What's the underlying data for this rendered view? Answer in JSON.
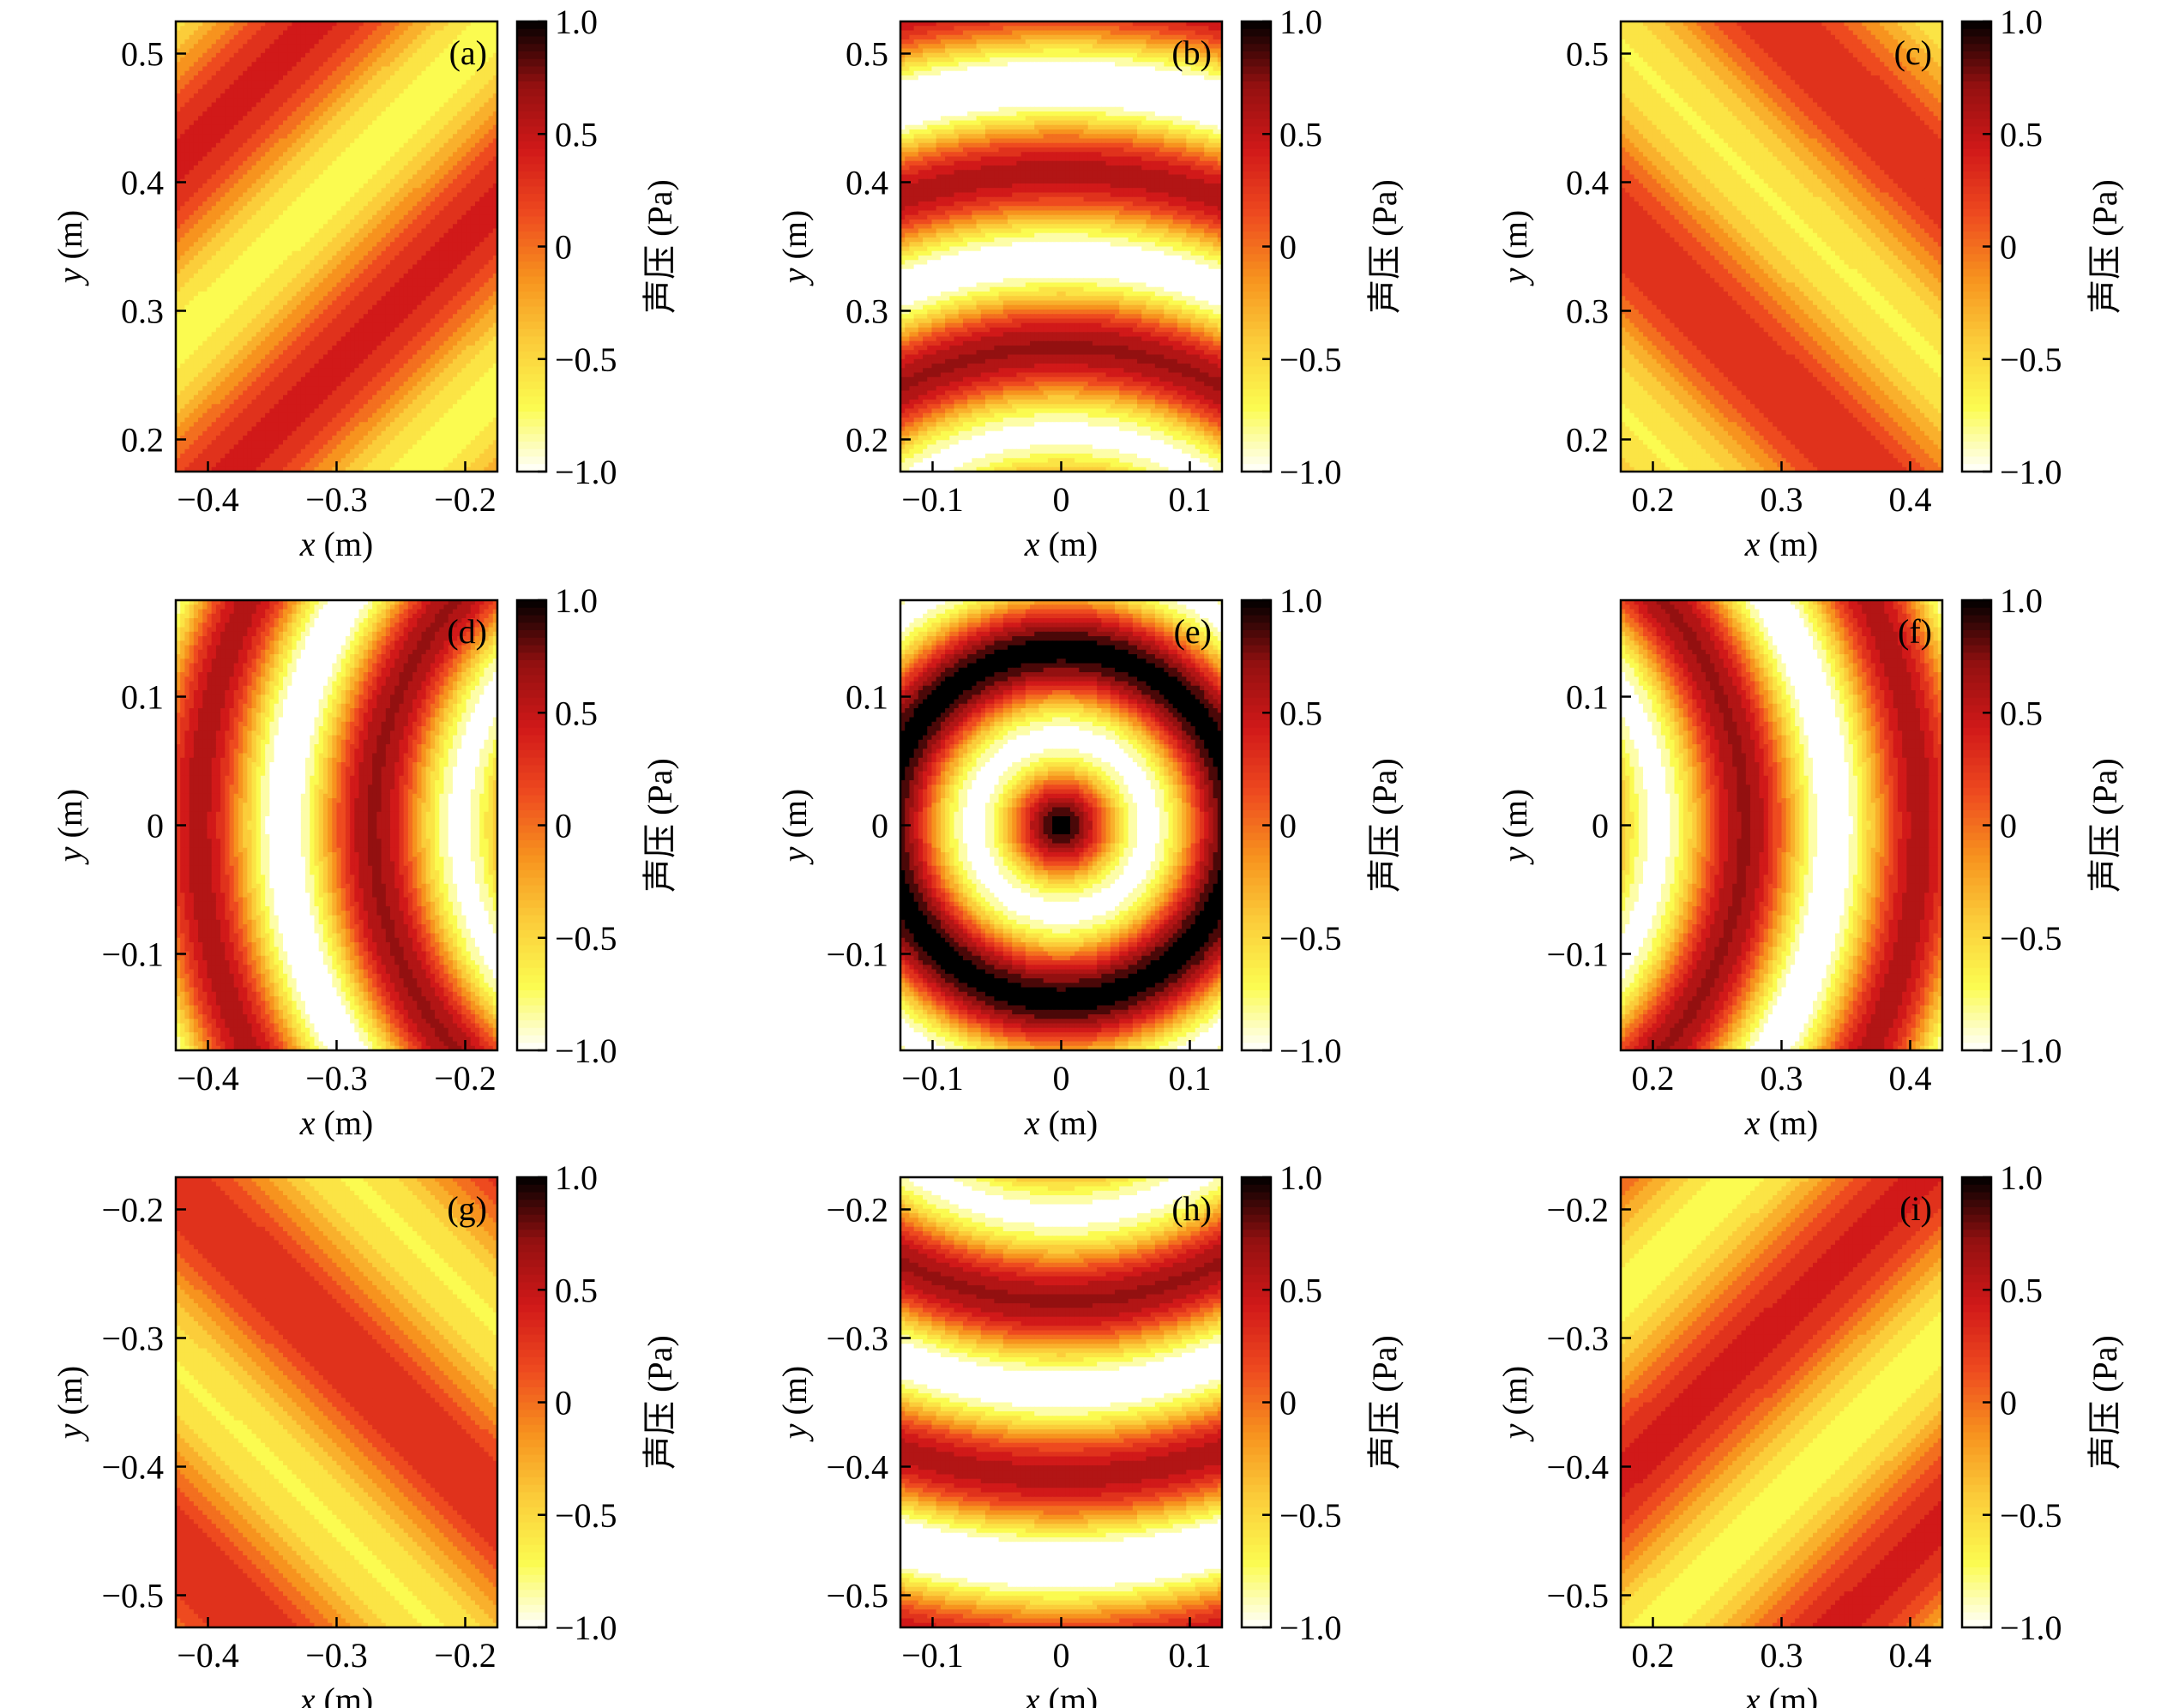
{
  "figure": {
    "colorbar_ticks": [
      "1.0",
      "0.5",
      "0",
      "−0.5",
      "−1.0"
    ],
    "colorbar_label": "声压 (Pa)",
    "colormap": [
      "#ffffff",
      "#fbfb50",
      "#fbcd3a",
      "#f7931e",
      "#ee4a1f",
      "#d11919",
      "#931010",
      "#000000"
    ]
  },
  "chart_data": [
    {
      "type": "heatmap",
      "panel_label": "(a)",
      "xlabel_var": "x",
      "xlabel_unit": " (m)",
      "ylabel_var": "y",
      "ylabel_unit": " (m)",
      "x_range": [
        -0.425,
        -0.175
      ],
      "y_range": [
        0.175,
        0.525
      ],
      "x_ticks": [
        -0.4,
        -0.3,
        -0.2
      ],
      "x_tick_labels": [
        "−0.4",
        "−0.3",
        "−0.2"
      ],
      "y_ticks": [
        0.2,
        0.3,
        0.4,
        0.5
      ],
      "y_tick_labels": [
        "0.2",
        "0.3",
        "0.4",
        "0.5"
      ],
      "colorbar_range": [
        -1.0,
        1.0
      ],
      "field": "plane-wave-diagonal",
      "field_params": {
        "dir": [
          -1,
          1
        ],
        "k": 15.7,
        "phase": 0.2,
        "amp": 0.55
      }
    },
    {
      "type": "heatmap",
      "panel_label": "(b)",
      "xlabel_var": "x",
      "xlabel_unit": " (m)",
      "ylabel_var": "y",
      "ylabel_unit": " (m)",
      "x_range": [
        -0.125,
        0.125
      ],
      "y_range": [
        0.175,
        0.525
      ],
      "x_ticks": [
        -0.1,
        0,
        0.1
      ],
      "x_tick_labels": [
        "−0.1",
        "0",
        "0.1"
      ],
      "y_ticks": [
        0.2,
        0.3,
        0.4,
        0.5
      ],
      "y_tick_labels": [
        "0.2",
        "0.3",
        "0.4",
        "0.5"
      ],
      "colorbar_range": [
        -1.0,
        1.0
      ],
      "field": "radial",
      "field_params": {
        "k": 21.0,
        "phase": 0.0,
        "amp": 0.85,
        "decay": 0.35
      }
    },
    {
      "type": "heatmap",
      "panel_label": "(c)",
      "xlabel_var": "x",
      "xlabel_unit": " (m)",
      "ylabel_var": "y",
      "ylabel_unit": " (m)",
      "x_range": [
        0.175,
        0.425
      ],
      "y_range": [
        0.175,
        0.525
      ],
      "x_ticks": [
        0.2,
        0.3,
        0.4
      ],
      "x_tick_labels": [
        "0.2",
        "0.3",
        "0.4"
      ],
      "y_ticks": [
        0.2,
        0.3,
        0.4,
        0.5
      ],
      "y_tick_labels": [
        "0.2",
        "0.3",
        "0.4",
        "0.5"
      ],
      "colorbar_range": [
        -1.0,
        1.0
      ],
      "field": "plane-wave-diagonal",
      "field_params": {
        "dir": [
          1,
          1
        ],
        "k": 15.7,
        "phase": 0.6,
        "amp": 0.5
      }
    },
    {
      "type": "heatmap",
      "panel_label": "(d)",
      "xlabel_var": "x",
      "xlabel_unit": " (m)",
      "ylabel_var": "y",
      "ylabel_unit": " (m)",
      "x_range": [
        -0.425,
        -0.175
      ],
      "y_range": [
        -0.175,
        0.175
      ],
      "x_ticks": [
        -0.4,
        -0.3,
        -0.2
      ],
      "x_tick_labels": [
        "−0.4",
        "−0.3",
        "−0.2"
      ],
      "y_ticks": [
        -0.1,
        0,
        0.1
      ],
      "y_tick_labels": [
        "−0.1",
        "0",
        "0.1"
      ],
      "colorbar_range": [
        -1.0,
        1.0
      ],
      "field": "radial",
      "field_params": {
        "k": 21.0,
        "phase": 0.0,
        "amp": 0.85,
        "decay": 0.35
      }
    },
    {
      "type": "heatmap",
      "panel_label": "(e)",
      "xlabel_var": "x",
      "xlabel_unit": " (m)",
      "ylabel_var": "y",
      "ylabel_unit": " (m)",
      "x_range": [
        -0.125,
        0.125
      ],
      "y_range": [
        -0.175,
        0.175
      ],
      "x_ticks": [
        -0.1,
        0,
        0.1
      ],
      "x_tick_labels": [
        "−0.1",
        "0",
        "0.1"
      ],
      "y_ticks": [
        -0.1,
        0,
        0.1
      ],
      "y_tick_labels": [
        "−0.1",
        "0",
        "0.1"
      ],
      "colorbar_range": [
        -1.0,
        1.0
      ],
      "field": "radial",
      "field_params": {
        "k": 21.0,
        "phase": 0.0,
        "amp": 1.0,
        "decay": 0.0
      }
    },
    {
      "type": "heatmap",
      "panel_label": "(f)",
      "xlabel_var": "x",
      "xlabel_unit": " (m)",
      "ylabel_var": "y",
      "ylabel_unit": " (m)",
      "x_range": [
        0.175,
        0.425
      ],
      "y_range": [
        -0.175,
        0.175
      ],
      "x_ticks": [
        0.2,
        0.3,
        0.4
      ],
      "x_tick_labels": [
        "0.2",
        "0.3",
        "0.4"
      ],
      "y_ticks": [
        -0.1,
        0,
        0.1
      ],
      "y_tick_labels": [
        "−0.1",
        "0",
        "0.1"
      ],
      "colorbar_range": [
        -1.0,
        1.0
      ],
      "field": "radial",
      "field_params": {
        "k": 21.0,
        "phase": 0.0,
        "amp": 0.85,
        "decay": 0.35
      }
    },
    {
      "type": "heatmap",
      "panel_label": "(g)",
      "xlabel_var": "x",
      "xlabel_unit": " (m)",
      "ylabel_var": "y",
      "ylabel_unit": " (m)",
      "x_range": [
        -0.425,
        -0.175
      ],
      "y_range": [
        -0.525,
        -0.175
      ],
      "x_ticks": [
        -0.4,
        -0.3,
        -0.2
      ],
      "x_tick_labels": [
        "−0.4",
        "−0.3",
        "−0.2"
      ],
      "y_ticks": [
        -0.5,
        -0.4,
        -0.3,
        -0.2
      ],
      "y_tick_labels": [
        "−0.5",
        "−0.4",
        "−0.3",
        "−0.2"
      ],
      "colorbar_range": [
        -1.0,
        1.0
      ],
      "field": "plane-wave-diagonal",
      "field_params": {
        "dir": [
          1,
          1
        ],
        "k": 15.7,
        "phase": 0.9,
        "amp": 0.5
      }
    },
    {
      "type": "heatmap",
      "panel_label": "(h)",
      "xlabel_var": "x",
      "xlabel_unit": " (m)",
      "ylabel_var": "y",
      "ylabel_unit": " (m)",
      "x_range": [
        -0.125,
        0.125
      ],
      "y_range": [
        -0.525,
        -0.175
      ],
      "x_ticks": [
        -0.1,
        0,
        0.1
      ],
      "x_tick_labels": [
        "−0.1",
        "0",
        "0.1"
      ],
      "y_ticks": [
        -0.5,
        -0.4,
        -0.3,
        -0.2
      ],
      "y_tick_labels": [
        "−0.5",
        "−0.4",
        "−0.3",
        "−0.2"
      ],
      "colorbar_range": [
        -1.0,
        1.0
      ],
      "field": "radial",
      "field_params": {
        "k": 21.0,
        "phase": 0.0,
        "amp": 0.85,
        "decay": 0.35
      }
    },
    {
      "type": "heatmap",
      "panel_label": "(i)",
      "xlabel_var": "x",
      "xlabel_unit": " (m)",
      "ylabel_var": "y",
      "ylabel_unit": " (m)",
      "x_range": [
        0.175,
        0.425
      ],
      "y_range": [
        -0.525,
        -0.175
      ],
      "x_ticks": [
        0.2,
        0.3,
        0.4
      ],
      "x_tick_labels": [
        "0.2",
        "0.3",
        "0.4"
      ],
      "y_ticks": [
        -0.5,
        -0.4,
        -0.3,
        -0.2
      ],
      "y_tick_labels": [
        "−0.5",
        "−0.4",
        "−0.3",
        "−0.2"
      ],
      "colorbar_range": [
        -1.0,
        1.0
      ],
      "field": "plane-wave-diagonal",
      "field_params": {
        "dir": [
          -1,
          1
        ],
        "k": 15.7,
        "phase": 0.4,
        "amp": 0.55
      }
    }
  ]
}
